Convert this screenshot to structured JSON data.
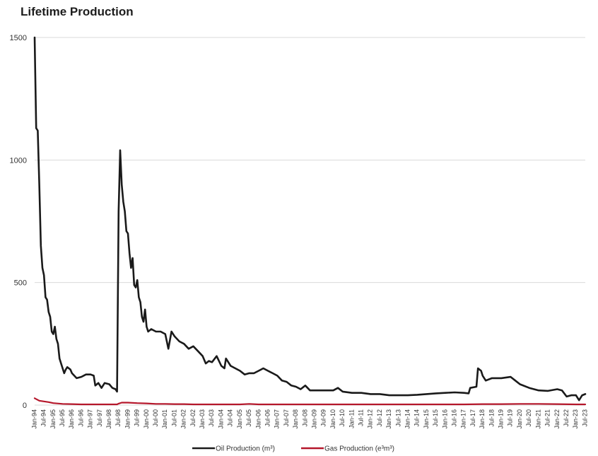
{
  "chart_data": {
    "type": "line",
    "title": "Lifetime Production",
    "xlabel": "",
    "ylabel": "",
    "ylim": [
      0,
      1500
    ],
    "yticks": [
      0,
      500,
      1000,
      1500
    ],
    "grid": true,
    "legend_position": "bottom",
    "x_start": "Jan-94",
    "x_end": "Jul-23",
    "x_tick_labels": [
      "Jan-94",
      "Jul-94",
      "Jan-95",
      "Jul-95",
      "Jan-96",
      "Jul-96",
      "Jan-97",
      "Jul-97",
      "Jan-98",
      "Jul-98",
      "Jan-99",
      "Jul-99",
      "Jan-00",
      "Jul-00",
      "Jan-01",
      "Jul-01",
      "Jan-02",
      "Jul-02",
      "Jan-03",
      "Jul-03",
      "Jan-04",
      "Jul-04",
      "Jan-05",
      "Jul-05",
      "Jan-06",
      "Jul-06",
      "Jan-07",
      "Jul-07",
      "Jan-08",
      "Jul-08",
      "Jan-09",
      "Jul-09",
      "Jan-10",
      "Jul-10",
      "Jan-11",
      "Jul-11",
      "Jan-12",
      "Jul-12",
      "Jan-13",
      "Jul-13",
      "Jan-14",
      "Jul-14",
      "Jan-15",
      "Jul-15",
      "Jan-16",
      "Jul-16",
      "Jan-17",
      "Jul-17",
      "Jan-18",
      "Jul-18",
      "Jan-19",
      "Jul-19",
      "Jan-20",
      "Jul-20",
      "Jan-21",
      "Jul-21",
      "Jan-22",
      "Jul-22",
      "Jan-23",
      "Jul-23"
    ],
    "series": [
      {
        "name": "Oil Production (m³)",
        "color": "#1a1a1a",
        "points": [
          [
            "Jan-94",
            1500
          ],
          [
            "Feb-94",
            1130
          ],
          [
            "Mar-94",
            1120
          ],
          [
            "Apr-94",
            900
          ],
          [
            "May-94",
            650
          ],
          [
            "Jun-94",
            560
          ],
          [
            "Jul-94",
            530
          ],
          [
            "Aug-94",
            440
          ],
          [
            "Sep-94",
            430
          ],
          [
            "Oct-94",
            380
          ],
          [
            "Nov-94",
            360
          ],
          [
            "Dec-94",
            300
          ],
          [
            "Jan-95",
            290
          ],
          [
            "Feb-95",
            320
          ],
          [
            "Mar-95",
            270
          ],
          [
            "Apr-95",
            250
          ],
          [
            "May-95",
            190
          ],
          [
            "Jun-95",
            170
          ],
          [
            "Jul-95",
            150
          ],
          [
            "Aug-95",
            130
          ],
          [
            "Sep-95",
            145
          ],
          [
            "Oct-95",
            155
          ],
          [
            "Nov-95",
            150
          ],
          [
            "Dec-95",
            145
          ],
          [
            "Jan-96",
            130
          ],
          [
            "Apr-96",
            110
          ],
          [
            "Jul-96",
            115
          ],
          [
            "Oct-96",
            125
          ],
          [
            "Jan-97",
            125
          ],
          [
            "Mar-97",
            120
          ],
          [
            "Apr-97",
            80
          ],
          [
            "Jun-97",
            90
          ],
          [
            "Aug-97",
            70
          ],
          [
            "Oct-97",
            90
          ],
          [
            "Jan-98",
            85
          ],
          [
            "Mar-98",
            70
          ],
          [
            "May-98",
            65
          ],
          [
            "Jun-98",
            55
          ],
          [
            "Jul-98",
            790
          ],
          [
            "Aug-98",
            1040
          ],
          [
            "Sep-98",
            900
          ],
          [
            "Oct-98",
            830
          ],
          [
            "Nov-98",
            790
          ],
          [
            "Dec-98",
            710
          ],
          [
            "Jan-99",
            700
          ],
          [
            "Feb-99",
            620
          ],
          [
            "Mar-99",
            560
          ],
          [
            "Apr-99",
            600
          ],
          [
            "May-99",
            490
          ],
          [
            "Jun-99",
            480
          ],
          [
            "Jul-99",
            510
          ],
          [
            "Aug-99",
            440
          ],
          [
            "Sep-99",
            420
          ],
          [
            "Oct-99",
            360
          ],
          [
            "Nov-99",
            340
          ],
          [
            "Dec-99",
            390
          ],
          [
            "Jan-00",
            320
          ],
          [
            "Feb-00",
            300
          ],
          [
            "Apr-00",
            310
          ],
          [
            "Jul-00",
            300
          ],
          [
            "Oct-00",
            300
          ],
          [
            "Jan-01",
            290
          ],
          [
            "Mar-01",
            230
          ],
          [
            "May-01",
            300
          ],
          [
            "Jul-01",
            280
          ],
          [
            "Oct-01",
            260
          ],
          [
            "Jan-02",
            250
          ],
          [
            "Apr-02",
            230
          ],
          [
            "Jul-02",
            240
          ],
          [
            "Oct-02",
            220
          ],
          [
            "Jan-03",
            200
          ],
          [
            "Mar-03",
            170
          ],
          [
            "May-03",
            180
          ],
          [
            "Jul-03",
            175
          ],
          [
            "Oct-03",
            200
          ],
          [
            "Jan-04",
            160
          ],
          [
            "Mar-04",
            150
          ],
          [
            "Apr-04",
            190
          ],
          [
            "Jul-04",
            160
          ],
          [
            "Oct-04",
            150
          ],
          [
            "Jan-05",
            140
          ],
          [
            "Apr-05",
            125
          ],
          [
            "Jul-05",
            130
          ],
          [
            "Oct-05",
            130
          ],
          [
            "Jan-06",
            140
          ],
          [
            "Apr-06",
            150
          ],
          [
            "Jul-06",
            140
          ],
          [
            "Oct-06",
            130
          ],
          [
            "Jan-07",
            120
          ],
          [
            "Apr-07",
            100
          ],
          [
            "Jul-07",
            95
          ],
          [
            "Oct-07",
            80
          ],
          [
            "Jan-08",
            75
          ],
          [
            "Apr-08",
            65
          ],
          [
            "Jul-08",
            80
          ],
          [
            "Oct-08",
            60
          ],
          [
            "Jan-09",
            60
          ],
          [
            "Jul-09",
            60
          ],
          [
            "Jan-10",
            60
          ],
          [
            "Apr-10",
            70
          ],
          [
            "Jul-10",
            55
          ],
          [
            "Jan-11",
            50
          ],
          [
            "Jul-11",
            50
          ],
          [
            "Jan-12",
            45
          ],
          [
            "Jul-12",
            45
          ],
          [
            "Jan-13",
            40
          ],
          [
            "Jul-13",
            40
          ],
          [
            "Jan-14",
            40
          ],
          [
            "Jul-14",
            42
          ],
          [
            "Jan-15",
            45
          ],
          [
            "Jul-15",
            48
          ],
          [
            "Jan-16",
            50
          ],
          [
            "Jul-16",
            52
          ],
          [
            "Jan-17",
            50
          ],
          [
            "Apr-17",
            48
          ],
          [
            "May-17",
            70
          ],
          [
            "Sep-17",
            75
          ],
          [
            "Oct-17",
            150
          ],
          [
            "Dec-17",
            140
          ],
          [
            "Jan-18",
            120
          ],
          [
            "Mar-18",
            100
          ],
          [
            "Jul-18",
            110
          ],
          [
            "Jan-19",
            110
          ],
          [
            "Jul-19",
            115
          ],
          [
            "Oct-19",
            100
          ],
          [
            "Jan-20",
            85
          ],
          [
            "Jul-20",
            70
          ],
          [
            "Jan-21",
            60
          ],
          [
            "Jul-21",
            58
          ],
          [
            "Jan-22",
            65
          ],
          [
            "Apr-22",
            60
          ],
          [
            "Jul-22",
            35
          ],
          [
            "Oct-22",
            40
          ],
          [
            "Jan-23",
            40
          ],
          [
            "Mar-23",
            20
          ],
          [
            "May-23",
            40
          ],
          [
            "Jul-23",
            45
          ]
        ]
      },
      {
        "name": "Gas Production (e³m³)",
        "color": "#b5172b",
        "points": [
          [
            "Jan-94",
            28
          ],
          [
            "Apr-94",
            18
          ],
          [
            "Jul-94",
            15
          ],
          [
            "Oct-94",
            12
          ],
          [
            "Jan-95",
            8
          ],
          [
            "Jul-95",
            5
          ],
          [
            "Jan-96",
            4
          ],
          [
            "Jul-96",
            3
          ],
          [
            "Jan-97",
            3
          ],
          [
            "Jul-97",
            3
          ],
          [
            "Jan-98",
            3
          ],
          [
            "Jun-98",
            3
          ],
          [
            "Jul-98",
            6
          ],
          [
            "Sep-98",
            10
          ],
          [
            "Jan-99",
            10
          ],
          [
            "Jul-99",
            8
          ],
          [
            "Jan-00",
            7
          ],
          [
            "Jul-00",
            5
          ],
          [
            "Jan-01",
            5
          ],
          [
            "Jul-01",
            4
          ],
          [
            "Jan-02",
            4
          ],
          [
            "Jul-02",
            3
          ],
          [
            "Jan-03",
            3
          ],
          [
            "Jan-04",
            3
          ],
          [
            "Jan-05",
            3
          ],
          [
            "Jul-05",
            5
          ],
          [
            "Jan-06",
            3
          ],
          [
            "Jan-07",
            3
          ],
          [
            "Jan-08",
            3
          ],
          [
            "Jan-10",
            3
          ],
          [
            "Jan-12",
            3
          ],
          [
            "Jan-14",
            3
          ],
          [
            "Jan-16",
            3
          ],
          [
            "Jan-17",
            3
          ],
          [
            "Jan-18",
            4
          ],
          [
            "Jan-19",
            4
          ],
          [
            "Jan-20",
            5
          ],
          [
            "Jan-21",
            5
          ],
          [
            "Jan-22",
            4
          ],
          [
            "Jan-23",
            3
          ],
          [
            "Jul-23",
            3
          ]
        ]
      }
    ]
  }
}
